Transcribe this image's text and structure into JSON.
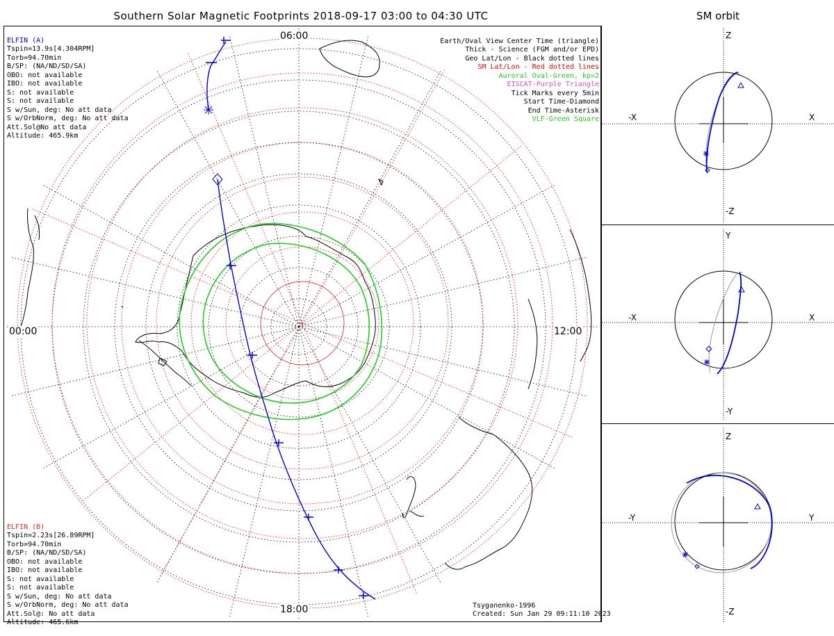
{
  "title": "Southern Solar Magnetic Footprints 2018-09-17 03:00 to 04:30 UTC",
  "orbit_title": "SM orbit",
  "time_labels": {
    "top": "06:00",
    "left": "00:00",
    "right": "12:00",
    "bottom": "18:00"
  },
  "elfin_a": {
    "name": "ELFIN (A)",
    "lines": [
      "Tspin=13.9s[4.304RPM]",
      "Torb=94.70min",
      "B/SP: (NA/ND/SD/SA)",
      "OBO: not available",
      "IBO: not available",
      "S: not available",
      "S: not available",
      "S w/Sun, deg: No att data",
      "S w/OrbNorm, deg: No att data",
      "Att.Sol@No att data",
      "Altitude: 465.9km"
    ]
  },
  "elfin_b": {
    "name": "ELFIN (B)",
    "lines": [
      "Tspin=2.23s[26.89RPM]",
      "Torb=94.70min",
      "B/SP: (NA/ND/SD/SA)",
      "OBO: not available",
      "IBO: not available",
      "S: not available",
      "S: not available",
      "S w/Sun, deg: No att data",
      "S w/OrbNorm, deg: No att data",
      "Att.Sol@: No att data",
      "Altitude: 465.6km"
    ]
  },
  "legend": [
    {
      "text": "Earth/Oval View Center Time (triangle)",
      "color": "#000000"
    },
    {
      "text": "Thick - Science (FGM and/or EPD)",
      "color": "#000000"
    },
    {
      "text": "Geo Lat/Lon - Black dotted lines",
      "color": "#000000"
    },
    {
      "text": "SM Lat/Lon - Red dotted lines",
      "color": "#e00000"
    },
    {
      "text": "Auroral Oval-Green, kp=2",
      "color": "#22cc22"
    },
    {
      "text": "EISCAT-Purple Triangle",
      "color": "#cc55cc"
    },
    {
      "text": "Tick Marks every 5min",
      "color": "#000000"
    },
    {
      "text": "Start Time-Diamond",
      "color": "#000000"
    },
    {
      "text": "End Time-Asterisk",
      "color": "#000000"
    },
    {
      "text": "VLF-Green Square",
      "color": "#22cc22"
    }
  ],
  "footer": {
    "model": "Tsyganenko-1996",
    "created": "Created: Sun Jan 29 09:11:10 2023"
  },
  "orbit_panels": [
    {
      "top": "Z",
      "bottom": "-Z",
      "left": "-X",
      "right": "X"
    },
    {
      "top": "Y",
      "bottom": "-Y",
      "left": "-X",
      "right": "X"
    },
    {
      "top": "Z",
      "bottom": "-Z",
      "left": "-Y",
      "right": "Y"
    }
  ],
  "colors": {
    "elfin_a": "#0000cc",
    "elfin_b": "#e03010",
    "oval": "#22cc22",
    "sm_grid": "#e00000",
    "geo_grid": "#000000",
    "orbit_b_trace": "#999999"
  }
}
